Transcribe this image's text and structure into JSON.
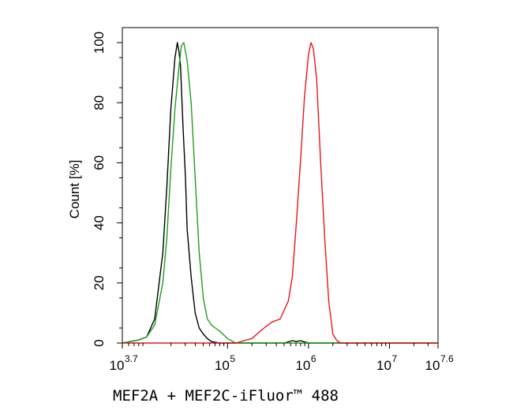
{
  "chart_data": {
    "type": "line",
    "title": "",
    "xlabel": "MEF2A + MEF2C-iFluor™ 488",
    "ylabel": "Count [%]",
    "x_scale": "log10",
    "xlim": [
      3.7,
      7.6
    ],
    "ylim": [
      0,
      105
    ],
    "y_ticks": [
      0,
      20,
      40,
      60,
      80,
      100
    ],
    "y_tick_labels": [
      "0",
      "20",
      "40",
      "60",
      "80",
      "100"
    ],
    "x_ticks": [
      3.7,
      5,
      6,
      7,
      7.6
    ],
    "x_tick_labels": [
      {
        "base": "10",
        "exp": "3.7"
      },
      {
        "base": "10",
        "exp": "5"
      },
      {
        "base": "10",
        "exp": "6"
      },
      {
        "base": "10",
        "exp": "7"
      },
      {
        "base": "10",
        "exp": "7.6"
      }
    ],
    "grid": false,
    "series": [
      {
        "color": "#000000",
        "x": [
          3.7,
          3.9,
          4.0,
          4.1,
          4.2,
          4.25,
          4.3,
          4.35,
          4.38,
          4.4,
          4.42,
          4.45,
          4.48,
          4.5,
          4.55,
          4.6,
          4.65,
          4.7,
          4.75,
          4.8,
          4.9,
          5.0,
          5.2,
          5.5,
          5.7,
          5.8,
          5.85,
          5.9,
          6.0,
          7.6
        ],
        "y": [
          0,
          1,
          2,
          8,
          30,
          52,
          78,
          95,
          100,
          97,
          92,
          72,
          55,
          38,
          22,
          10,
          5,
          3,
          1.5,
          0.5,
          0,
          0,
          0,
          0,
          0,
          0.8,
          0.5,
          0.8,
          0,
          0
        ]
      },
      {
        "color": "#1f9e1f",
        "x": [
          3.7,
          3.9,
          4.0,
          4.1,
          4.2,
          4.25,
          4.3,
          4.35,
          4.4,
          4.43,
          4.46,
          4.5,
          4.55,
          4.6,
          4.65,
          4.7,
          4.75,
          4.8,
          4.85,
          4.9,
          5.0,
          5.1,
          7.6
        ],
        "y": [
          0,
          1,
          2,
          6,
          20,
          35,
          58,
          78,
          92,
          99,
          100,
          94,
          80,
          55,
          30,
          15,
          8,
          6,
          5,
          4,
          1.5,
          0,
          0
        ]
      },
      {
        "color": "#e8161a",
        "x": [
          3.7,
          5.1,
          5.3,
          5.45,
          5.55,
          5.65,
          5.75,
          5.8,
          5.85,
          5.9,
          5.95,
          6.0,
          6.03,
          6.06,
          6.1,
          6.15,
          6.2,
          6.25,
          6.3,
          6.35,
          6.4,
          7.6
        ],
        "y": [
          0,
          0,
          1.5,
          5,
          7,
          8,
          14,
          22,
          40,
          60,
          82,
          96,
          100,
          98,
          88,
          60,
          35,
          14,
          3,
          0.8,
          0,
          0
        ]
      }
    ]
  }
}
